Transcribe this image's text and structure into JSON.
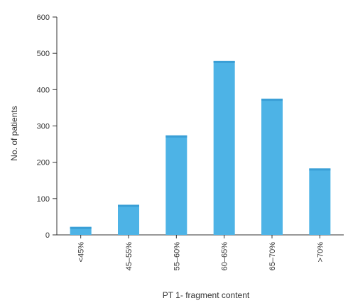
{
  "chart_data": {
    "type": "bar",
    "xlabel": "PT 1- fragment content",
    "ylabel": "No. of patients",
    "categories": [
      "<45%",
      "45–55%",
      "55–60%",
      "60–65%",
      "65–70%",
      ">70%"
    ],
    "values": [
      22,
      83,
      274,
      479,
      375,
      183
    ],
    "ylim": [
      0,
      600
    ],
    "yticks": [
      0,
      100,
      200,
      300,
      400,
      500,
      600
    ],
    "grid": false,
    "legend": "none",
    "colors": {
      "bar": "#4db3e6",
      "bar_top": "#3a9fd6",
      "axis": "#333333"
    }
  }
}
